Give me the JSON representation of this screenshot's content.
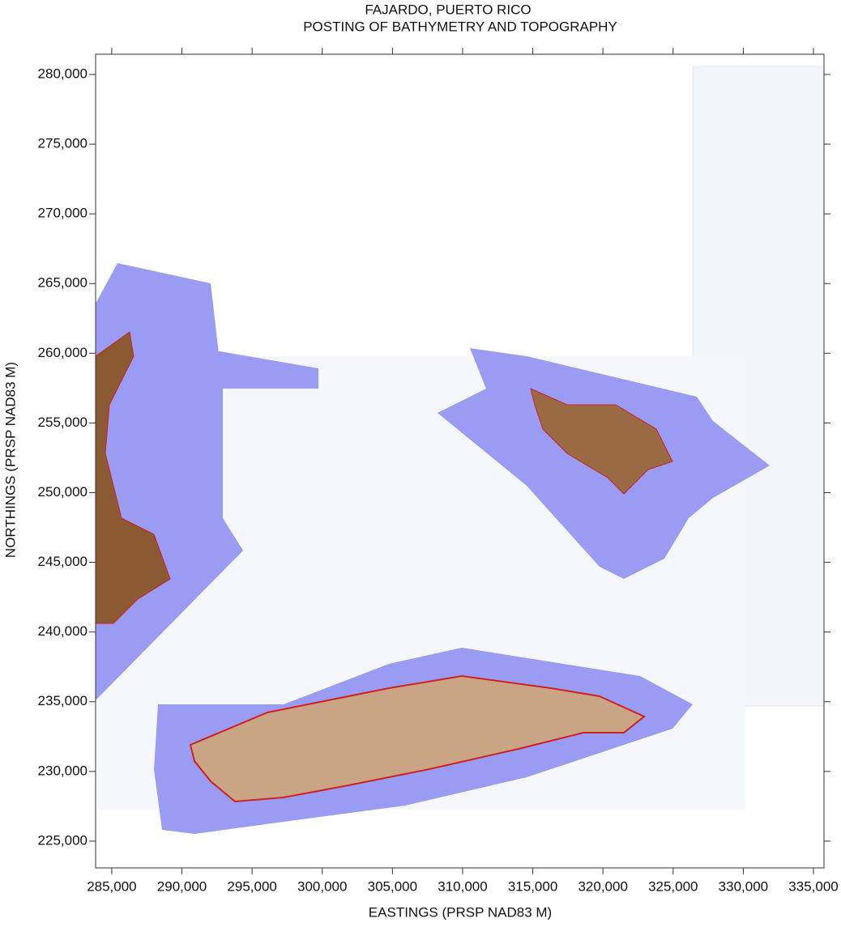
{
  "chart_data": {
    "type": "map",
    "title": [
      "FAJARDO, PUERTO RICO",
      "POSTING OF BATHYMETRY AND TOPOGRAPHY"
    ],
    "x_label": "EASTINGS (PRSP NAD83 M)",
    "y_label": "NORTHINGS (PRSP NAD83 M)",
    "xlim": [
      283850,
      335750
    ],
    "ylim": [
      223080,
      281450
    ],
    "xticks": [
      {
        "value": 285000,
        "label": "285,000"
      },
      {
        "value": 290000,
        "label": "290,000"
      },
      {
        "value": 295000,
        "label": "295,000"
      },
      {
        "value": 300000,
        "label": "300,000"
      },
      {
        "value": 305000,
        "label": "305,000"
      },
      {
        "value": 310000,
        "label": "310,000"
      },
      {
        "value": 315000,
        "label": "315,000"
      },
      {
        "value": 320000,
        "label": "320,000"
      },
      {
        "value": 325000,
        "label": "325,000"
      },
      {
        "value": 330000,
        "label": "330,000"
      },
      {
        "value": 335000,
        "label": "335,000"
      }
    ],
    "yticks": [
      {
        "value": 225000,
        "label": "225,000"
      },
      {
        "value": 230000,
        "label": "230,000"
      },
      {
        "value": 235000,
        "label": "235,000"
      },
      {
        "value": 240000,
        "label": "240,000"
      },
      {
        "value": 245000,
        "label": "245,000"
      },
      {
        "value": 250000,
        "label": "250,000"
      },
      {
        "value": 255000,
        "label": "255,000"
      },
      {
        "value": 260000,
        "label": "260,000"
      },
      {
        "value": 265000,
        "label": "265,000"
      },
      {
        "value": 270000,
        "label": "270,000"
      },
      {
        "value": 275000,
        "label": "275,000"
      },
      {
        "value": 280000,
        "label": "280,000"
      }
    ]
  }
}
